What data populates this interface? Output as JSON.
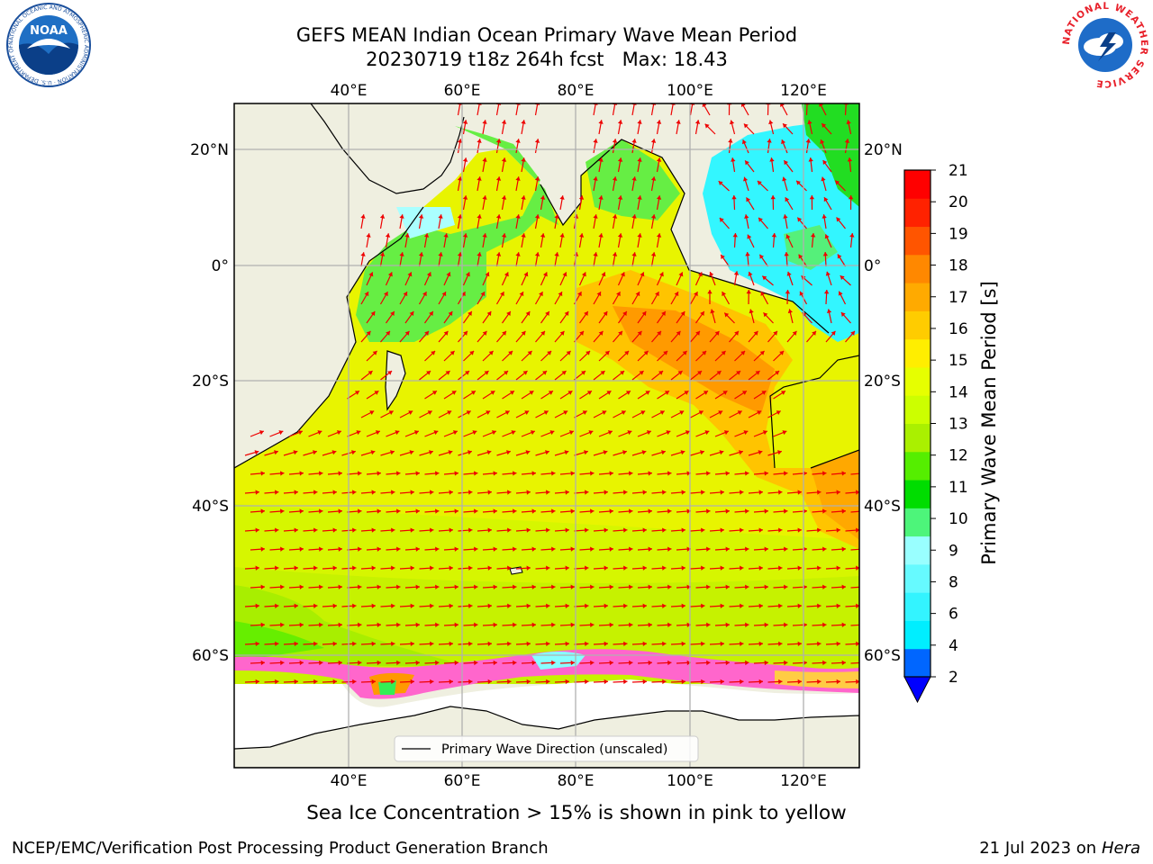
{
  "header": {
    "title_line1": "GEFS MEAN Indian Ocean Primary Wave Mean Period",
    "title_line2": "20230719 t18z 264h fcst   Max: 18.43"
  },
  "logos": {
    "left": {
      "text": "NOAA",
      "ring_text": "NATIONAL OCEANIC AND ATMOSPHERIC ADMINISTRATION · U.S. DEPARTMENT OF COMMERCE"
    },
    "right": {
      "ring_text": "NATIONAL WEATHER SERVICE"
    }
  },
  "map": {
    "lon_ticks": [
      "40°E",
      "60°E",
      "80°E",
      "100°E",
      "120°E"
    ],
    "lat_ticks": [
      "20°N",
      "0°",
      "20°S",
      "40°S",
      "60°S"
    ],
    "legend_label": "Primary Wave Direction (unscaled)"
  },
  "colorbar": {
    "label": "Primary Wave Mean Period [s]",
    "ticks": [
      "2",
      "4",
      "6",
      "8",
      "9",
      "10",
      "11",
      "12",
      "13",
      "14",
      "15",
      "16",
      "17",
      "18",
      "19",
      "20",
      "21"
    ],
    "colors": [
      "#0066ff",
      "#00eeff",
      "#33f4ff",
      "#66faff",
      "#99ffff",
      "#4df57a",
      "#00dd00",
      "#55ee00",
      "#aaf000",
      "#ccff00",
      "#e6ff00",
      "#ffee00",
      "#ffcc00",
      "#ffaa00",
      "#ff8800",
      "#ff5500",
      "#ff2200",
      "#ff0000"
    ],
    "extend_color": "#0000ff"
  },
  "note": "Sea Ice Concentration > 15% is shown in pink to yellow",
  "footer": {
    "left": "NCEP/EMC/Verification Post Processing Product Generation Branch",
    "date": "21 Jul 2023 on ",
    "machine": "Hera"
  }
}
